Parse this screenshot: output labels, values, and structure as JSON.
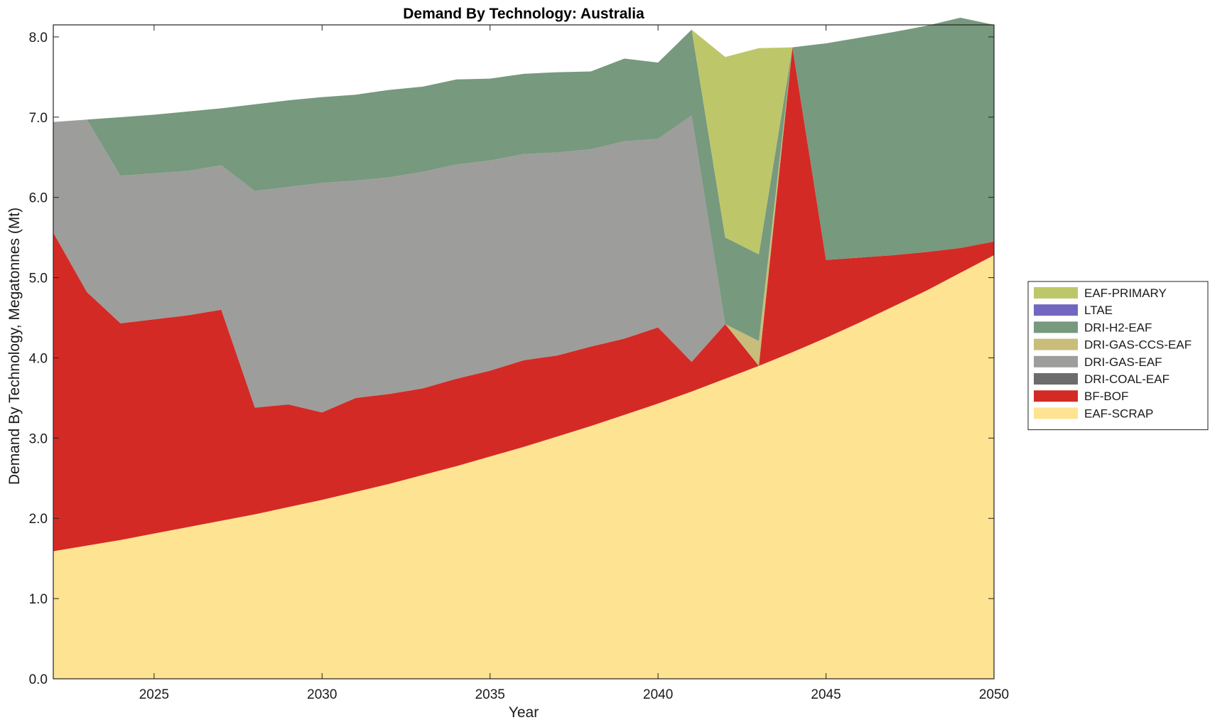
{
  "chart_data": {
    "type": "area",
    "title": "Demand By Technology: Australia",
    "xlabel": "Year",
    "ylabel": "Demand By Technology, Megatonnes (Mt)",
    "xlim": [
      2022,
      2050
    ],
    "ylim": [
      0,
      8.15
    ],
    "xticks": [
      2025,
      2030,
      2035,
      2040,
      2045,
      2050
    ],
    "yticks": [
      "0.0",
      "1.0",
      "2.0",
      "3.0",
      "4.0",
      "5.0",
      "6.0",
      "7.0",
      "8.0"
    ],
    "grid": false,
    "legend_position": "right",
    "x": [
      2022,
      2023,
      2024,
      2025,
      2026,
      2027,
      2028,
      2029,
      2030,
      2031,
      2032,
      2033,
      2034,
      2035,
      2036,
      2037,
      2038,
      2039,
      2040,
      2041,
      2042,
      2043,
      2044,
      2045,
      2046,
      2047,
      2048,
      2049,
      2050
    ],
    "series": [
      {
        "name": "EAF-SCRAP",
        "color": "#fde392",
        "values": [
          1.59,
          1.66,
          1.73,
          1.81,
          1.89,
          1.97,
          2.05,
          2.14,
          2.23,
          2.33,
          2.43,
          2.54,
          2.65,
          2.77,
          2.89,
          3.02,
          3.15,
          3.29,
          3.43,
          3.58,
          3.74,
          3.9,
          4.07,
          4.25,
          4.44,
          4.64,
          4.84,
          5.06,
          5.28
        ]
      },
      {
        "name": "BF-BOF",
        "color": "#d42a25",
        "values": [
          3.97,
          3.16,
          2.7,
          2.67,
          2.64,
          2.63,
          1.33,
          1.28,
          1.09,
          1.17,
          1.12,
          1.08,
          1.09,
          1.07,
          1.08,
          1.01,
          0.99,
          0.95,
          0.95,
          0.37,
          0.68,
          0.0,
          3.8,
          0.97,
          0.81,
          0.64,
          0.48,
          0.31,
          0.17
        ]
      },
      {
        "name": "DRI-COAL-EAF",
        "color": "#6c6c6c",
        "values": [
          0,
          0,
          0,
          0,
          0,
          0,
          0,
          0,
          0,
          0,
          0,
          0,
          0,
          0,
          0,
          0,
          0,
          0,
          0,
          0,
          0,
          0,
          0,
          0,
          0,
          0,
          0,
          0,
          0
        ]
      },
      {
        "name": "DRI-GAS-EAF",
        "color": "#9d9d9b",
        "values": [
          1.38,
          2.15,
          1.84,
          1.82,
          1.8,
          1.8,
          2.7,
          2.71,
          2.86,
          2.71,
          2.7,
          2.7,
          2.67,
          2.62,
          2.57,
          2.53,
          2.46,
          2.46,
          2.35,
          3.07,
          0,
          0,
          0,
          0,
          0,
          0,
          0,
          0,
          0
        ]
      },
      {
        "name": "DRI-GAS-CCS-EAF",
        "color": "#c8bd7a",
        "values": [
          0,
          0,
          0,
          0,
          0,
          0,
          0,
          0,
          0,
          0,
          0,
          0,
          0,
          0,
          0,
          0,
          0,
          0,
          0,
          0,
          0,
          0.31,
          0,
          0,
          0,
          0,
          0,
          0,
          0
        ]
      },
      {
        "name": "DRI-H2-EAF",
        "color": "#77997e",
        "values": [
          0,
          0,
          0.73,
          0.73,
          0.74,
          0.71,
          1.08,
          1.08,
          1.07,
          1.07,
          1.09,
          1.06,
          1.06,
          1.02,
          1.0,
          1.0,
          0.97,
          1.03,
          0.95,
          1.07,
          1.08,
          1.08,
          0,
          2.7,
          2.74,
          2.78,
          2.82,
          2.87,
          2.7
        ]
      },
      {
        "name": "LTAE",
        "color": "#7267be",
        "values": [
          0,
          0,
          0,
          0,
          0,
          0,
          0,
          0,
          0,
          0,
          0,
          0,
          0,
          0,
          0,
          0,
          0,
          0,
          0,
          0,
          0,
          0,
          0,
          0,
          0,
          0,
          0,
          0,
          0
        ]
      },
      {
        "name": "EAF-PRIMARY",
        "color": "#bdc76a",
        "values": [
          0,
          0,
          0,
          0,
          0,
          0,
          0,
          0,
          0,
          0,
          0,
          0,
          0,
          0,
          0,
          0,
          0,
          0,
          0,
          0,
          2.25,
          2.57,
          0,
          0,
          0,
          0,
          0,
          0,
          0
        ]
      }
    ],
    "legend_order": [
      "EAF-PRIMARY",
      "LTAE",
      "DRI-H2-EAF",
      "DRI-GAS-CCS-EAF",
      "DRI-GAS-EAF",
      "DRI-COAL-EAF",
      "BF-BOF",
      "EAF-SCRAP"
    ]
  }
}
